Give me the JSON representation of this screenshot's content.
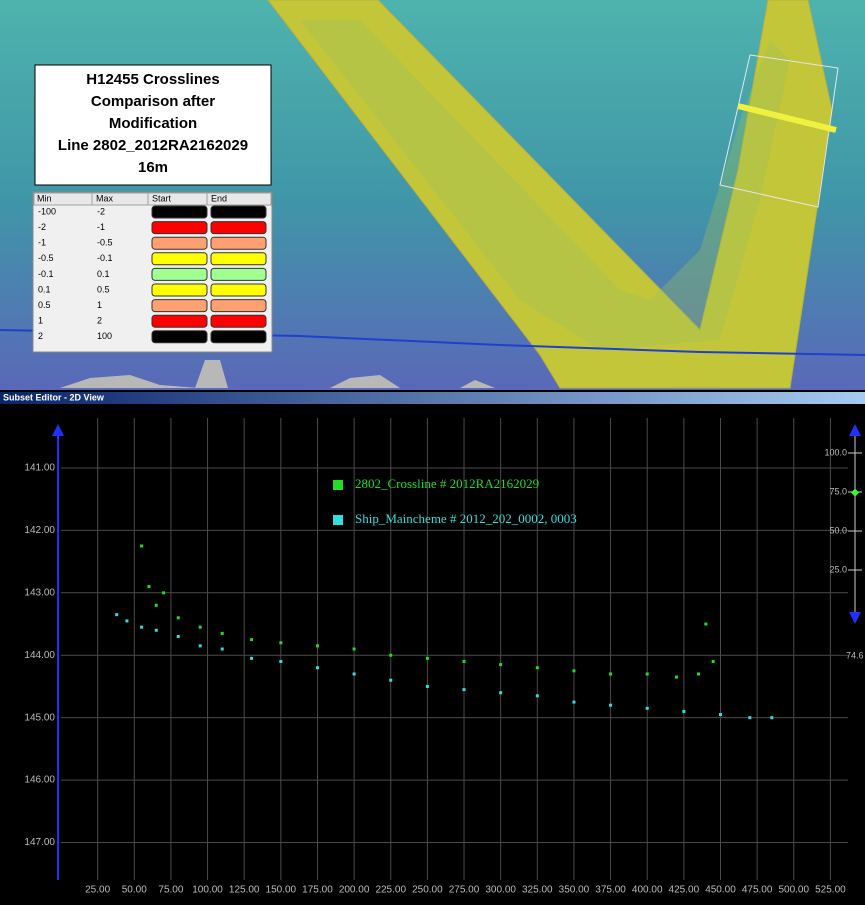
{
  "map": {
    "title_lines": [
      "H12455 Crosslines",
      "Comparison after",
      "Modification",
      "Line 2802_2012RA2162029",
      "16m"
    ],
    "color_table": {
      "headers": [
        "Min",
        "Max",
        "Start",
        "End"
      ],
      "rows": [
        {
          "min": -100,
          "max": -2,
          "start": "#000000",
          "end": "#000000"
        },
        {
          "min": -2,
          "max": -1,
          "start": "#ff0000",
          "end": "#ff0000"
        },
        {
          "min": -1,
          "max": -0.5,
          "start": "#ffa070",
          "end": "#ffa070"
        },
        {
          "min": -0.5,
          "max": -0.1,
          "start": "#ffff00",
          "end": "#ffff00"
        },
        {
          "min": -0.1,
          "max": 0.1,
          "start": "#a0ff90",
          "end": "#a0ff90"
        },
        {
          "min": 0.1,
          "max": 0.5,
          "start": "#ffff00",
          "end": "#ffff00"
        },
        {
          "min": 0.5,
          "max": 1,
          "start": "#ffa070",
          "end": "#ffa070"
        },
        {
          "min": 1,
          "max": 2,
          "start": "#ff0000",
          "end": "#ff0000"
        },
        {
          "min": 2,
          "max": 100,
          "start": "#000000",
          "end": "#000000"
        }
      ]
    }
  },
  "subset_editor": {
    "title": "Subset Editor - 2D View",
    "chart_data": {
      "type": "scatter",
      "xlim": [
        0,
        537
      ],
      "xticks": [
        {
          "value": 25,
          "label": "25.00"
        },
        {
          "value": 50,
          "label": "50.00"
        },
        {
          "value": 75,
          "label": "75.00"
        },
        {
          "value": 100,
          "label": "100.00"
        },
        {
          "value": 125,
          "label": "125.00"
        },
        {
          "value": 150,
          "label": "150.00"
        },
        {
          "value": 175,
          "label": "175.00"
        },
        {
          "value": 200,
          "label": "200.00"
        },
        {
          "value": 225,
          "label": "225.00"
        },
        {
          "value": 250,
          "label": "250.00"
        },
        {
          "value": 275,
          "label": "275.00"
        },
        {
          "value": 300,
          "label": "300.00"
        },
        {
          "value": 325,
          "label": "325.00"
        },
        {
          "value": 350,
          "label": "350.00"
        },
        {
          "value": 375,
          "label": "375.00"
        },
        {
          "value": 400,
          "label": "400.00"
        },
        {
          "value": 425,
          "label": "425.00"
        },
        {
          "value": 450,
          "label": "450.00"
        },
        {
          "value": 475,
          "label": "475.00"
        },
        {
          "value": 500,
          "label": "500.00"
        },
        {
          "value": 525,
          "label": "525.00"
        }
      ],
      "ylim": [
        140.2,
        147.6
      ],
      "y_inverted": true,
      "yticks": [
        {
          "value": 141,
          "label": "141.00"
        },
        {
          "value": 142,
          "label": "142.00"
        },
        {
          "value": 143,
          "label": "143.00"
        },
        {
          "value": 144,
          "label": "144.00"
        },
        {
          "value": 145,
          "label": "145.00"
        },
        {
          "value": 146,
          "label": "146.00"
        },
        {
          "value": 147,
          "label": "147.00"
        }
      ],
      "grid": true,
      "series": [
        {
          "name": "2802_Crossline # 2012RA2162029",
          "color": "#22dd22",
          "x": [
            55,
            60,
            65,
            70,
            80,
            95,
            110,
            130,
            150,
            175,
            200,
            225,
            250,
            275,
            300,
            325,
            350,
            375,
            400,
            420,
            435,
            440,
            445
          ],
          "values": [
            142.25,
            142.9,
            143.2,
            143.0,
            143.4,
            143.55,
            143.65,
            143.75,
            143.8,
            143.85,
            143.9,
            144.0,
            144.05,
            144.1,
            144.15,
            144.2,
            144.25,
            144.3,
            144.3,
            144.35,
            144.3,
            143.5,
            144.1
          ]
        },
        {
          "name": "Ship_Maincheme # 2012_202_0002, 0003",
          "color": "#33dddd",
          "x": [
            38,
            45,
            55,
            65,
            80,
            95,
            110,
            130,
            150,
            175,
            200,
            225,
            250,
            275,
            300,
            325,
            350,
            375,
            400,
            425,
            450,
            470,
            485
          ],
          "values": [
            143.35,
            143.45,
            143.55,
            143.6,
            143.7,
            143.85,
            143.9,
            144.05,
            144.1,
            144.2,
            144.3,
            144.4,
            144.5,
            144.55,
            144.6,
            144.65,
            144.75,
            144.8,
            144.85,
            144.9,
            144.95,
            145.0,
            145.0
          ]
        }
      ]
    },
    "slider": {
      "lim": [
        0,
        100
      ],
      "ticks": [
        {
          "value": 100,
          "label": "100.0"
        },
        {
          "value": 75,
          "label": "75.0"
        },
        {
          "value": 50,
          "label": "50.0"
        },
        {
          "value": 25,
          "label": "25.0"
        }
      ],
      "value": 74.6
    }
  }
}
